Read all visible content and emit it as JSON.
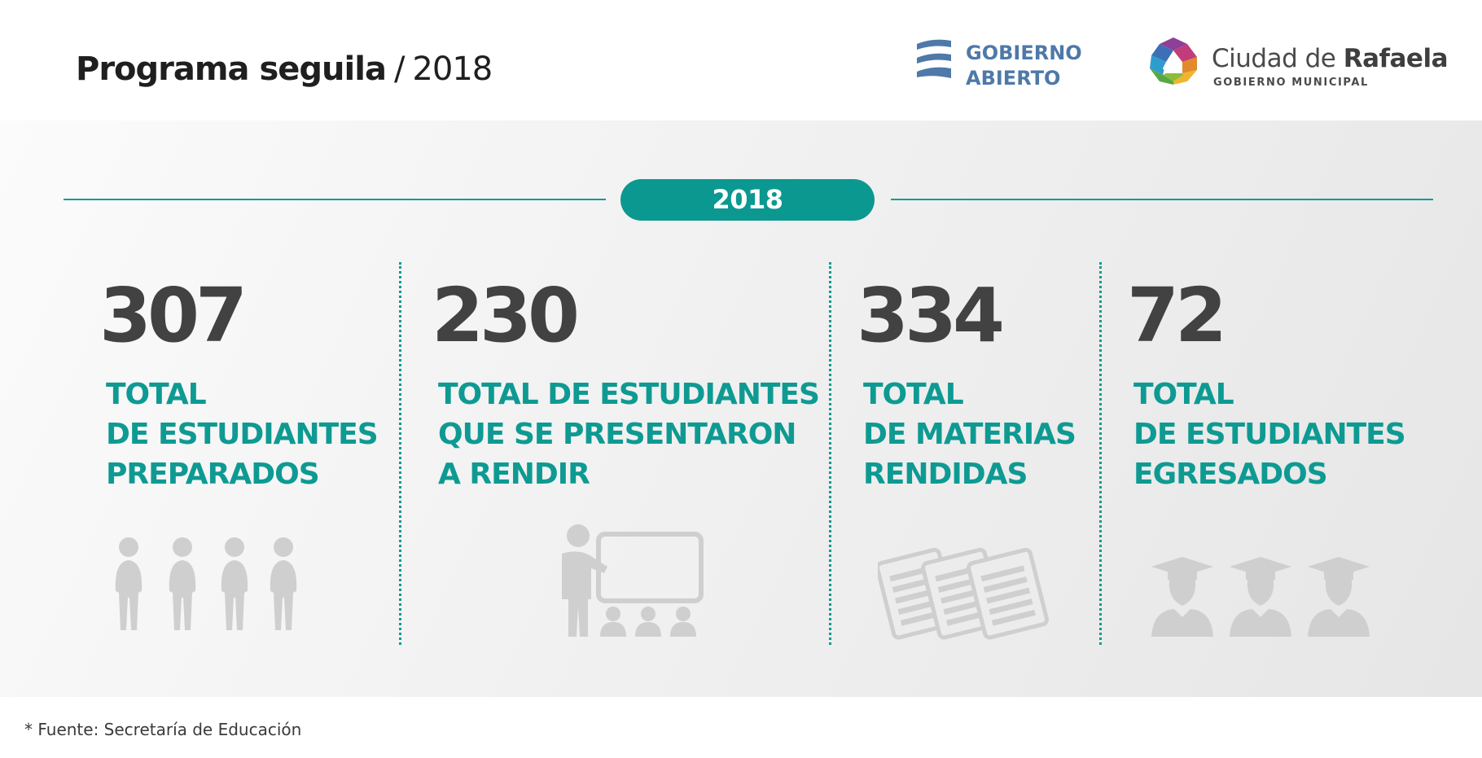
{
  "header": {
    "title": "Programa seguila",
    "separator": "/",
    "year": "2018"
  },
  "logos": {
    "gobierno_abierto": {
      "line1": "GOBIERNO",
      "line2": "ABIERTO",
      "icon": "gobierno-abierto-logo-icon"
    },
    "ciudad_rafaela": {
      "name_light": "Ciudad de ",
      "name_bold": "Rafaela",
      "subtitle": "GOBIERNO MUNICIPAL",
      "icon": "ciudad-rafaela-logo-icon"
    }
  },
  "year_badge": "2018",
  "stats": [
    {
      "value": "307",
      "label": [
        "TOTAL",
        "DE ESTUDIANTES",
        "PREPARADOS"
      ],
      "icon": "students-group-icon"
    },
    {
      "value": "230",
      "label": [
        "TOTAL DE ESTUDIANTES",
        "QUE SE PRESENTARON",
        "A RENDIR"
      ],
      "icon": "teacher-classroom-icon"
    },
    {
      "value": "334",
      "label": [
        "TOTAL",
        "DE MATERIAS",
        "RENDIDAS"
      ],
      "icon": "exam-papers-icon"
    },
    {
      "value": "72",
      "label": [
        "TOTAL",
        "DE ESTUDIANTES",
        "EGRESADOS"
      ],
      "icon": "graduates-icon"
    }
  ],
  "footnote": "* Fuente: Secretaría de Educación",
  "colors": {
    "accent": "#0e9a92",
    "number": "#424242",
    "icon_gray": "#cfcfcf",
    "gobierno_abierto_blue": "#4e79a8"
  }
}
